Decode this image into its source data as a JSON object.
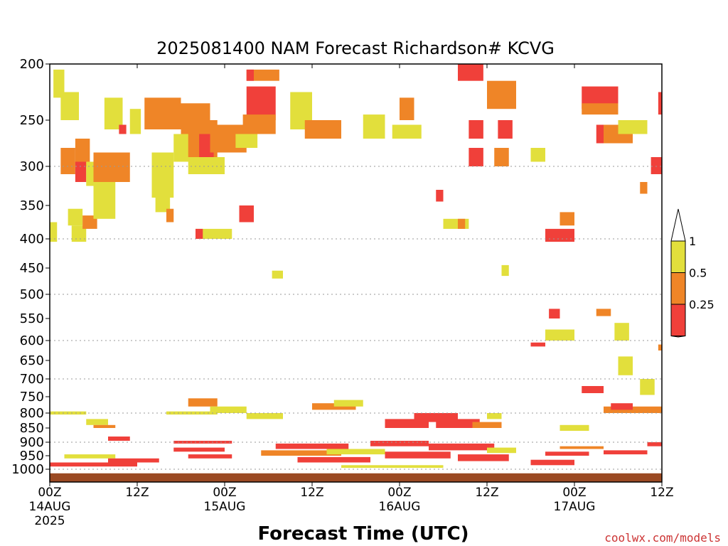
{
  "chart_data": {
    "type": "heatmap",
    "title": "2025081400 NAM Forecast Richardson# KCVG",
    "xlabel": "Forecast Time (UTC)",
    "ylabel": "",
    "x_unit": "forecast hour",
    "x_range": [
      0,
      84
    ],
    "x_ticks": [
      {
        "hour": 0,
        "label": "00Z",
        "sub": "14AUG",
        "sub2": "2025"
      },
      {
        "hour": 12,
        "label": "12Z",
        "sub": "",
        "sub2": ""
      },
      {
        "hour": 24,
        "label": "00Z",
        "sub": "15AUG",
        "sub2": ""
      },
      {
        "hour": 36,
        "label": "12Z",
        "sub": "",
        "sub2": ""
      },
      {
        "hour": 48,
        "label": "00Z",
        "sub": "16AUG",
        "sub2": ""
      },
      {
        "hour": 60,
        "label": "12Z",
        "sub": "",
        "sub2": ""
      },
      {
        "hour": 72,
        "label": "00Z",
        "sub": "17AUG",
        "sub2": ""
      },
      {
        "hour": 84,
        "label": "12Z",
        "sub": "",
        "sub2": ""
      }
    ],
    "y_unit": "hPa",
    "y_range": [
      1025,
      200
    ],
    "y_ticks": [
      200,
      250,
      300,
      350,
      400,
      450,
      500,
      550,
      600,
      650,
      700,
      750,
      800,
      850,
      900,
      950,
      1000
    ],
    "y_gridlines": [
      300,
      400,
      500,
      600,
      700,
      800,
      900,
      1000
    ],
    "grid": "dotted horizontal",
    "surface_band": {
      "top_hpa": 1008,
      "color": "#9b4a23"
    },
    "colorbar": {
      "placement": "right",
      "levels": [
        {
          "label": "1",
          "range": [
            0.5,
            1
          ],
          "color": "#e2df3c"
        },
        {
          "label": "0.5",
          "range": [
            0.25,
            0.5
          ],
          "color": "#ef8527"
        },
        {
          "label": "0.25",
          "range": [
            0,
            0.25
          ],
          "color": "#f0403a"
        }
      ],
      "over_color": "#ffffff",
      "under_color": "#f0403a"
    },
    "cells": [
      {
        "x": [
          0.5,
          2
        ],
        "p": [
          205,
          230
        ],
        "c": "y"
      },
      {
        "x": [
          0,
          1
        ],
        "p": [
          375,
          405
        ],
        "c": "y"
      },
      {
        "x": [
          1.5,
          4
        ],
        "p": [
          225,
          250
        ],
        "c": "y"
      },
      {
        "x": [
          1.5,
          3.5
        ],
        "p": [
          280,
          310
        ],
        "c": "o"
      },
      {
        "x": [
          3.5,
          5.5
        ],
        "p": [
          270,
          300
        ],
        "c": "o"
      },
      {
        "x": [
          3.5,
          5
        ],
        "p": [
          295,
          320
        ],
        "c": "r"
      },
      {
        "x": [
          2.5,
          4.5
        ],
        "p": [
          355,
          380
        ],
        "c": "y"
      },
      {
        "x": [
          3,
          5
        ],
        "p": [
          380,
          405
        ],
        "c": "y"
      },
      {
        "x": [
          4.5,
          6.5
        ],
        "p": [
          365,
          385
        ],
        "c": "o"
      },
      {
        "x": [
          5,
          9
        ],
        "p": [
          295,
          325
        ],
        "c": "y"
      },
      {
        "x": [
          6,
          11
        ],
        "p": [
          285,
          320
        ],
        "c": "o"
      },
      {
        "x": [
          6,
          9
        ],
        "p": [
          325,
          370
        ],
        "c": "y"
      },
      {
        "x": [
          7.5,
          10
        ],
        "p": [
          230,
          260
        ],
        "c": "y"
      },
      {
        "x": [
          9.5,
          10.5
        ],
        "p": [
          255,
          265
        ],
        "c": "r"
      },
      {
        "x": [
          11,
          12.5
        ],
        "p": [
          240,
          265
        ],
        "c": "y"
      },
      {
        "x": [
          13,
          18
        ],
        "p": [
          230,
          260
        ],
        "c": "o"
      },
      {
        "x": [
          14,
          17
        ],
        "p": [
          285,
          340
        ],
        "c": "y"
      },
      {
        "x": [
          14.5,
          16.5
        ],
        "p": [
          320,
          360
        ],
        "c": "y"
      },
      {
        "x": [
          16,
          17
        ],
        "p": [
          355,
          375
        ],
        "c": "o"
      },
      {
        "x": [
          18,
          22
        ],
        "p": [
          235,
          270
        ],
        "c": "o"
      },
      {
        "x": [
          17,
          21
        ],
        "p": [
          265,
          295
        ],
        "c": "y"
      },
      {
        "x": [
          19,
          23
        ],
        "p": [
          250,
          290
        ],
        "c": "o"
      },
      {
        "x": [
          20.5,
          22.5
        ],
        "p": [
          265,
          290
        ],
        "c": "r"
      },
      {
        "x": [
          19,
          24
        ],
        "p": [
          290,
          310
        ],
        "c": "y"
      },
      {
        "x": [
          22,
          27
        ],
        "p": [
          255,
          285
        ],
        "c": "o"
      },
      {
        "x": [
          20,
          25
        ],
        "p": [
          385,
          400
        ],
        "c": "y"
      },
      {
        "x": [
          20,
          21
        ],
        "p": [
          385,
          400
        ],
        "c": "r"
      },
      {
        "x": [
          27,
          31
        ],
        "p": [
          220,
          250
        ],
        "c": "r"
      },
      {
        "x": [
          26.5,
          31
        ],
        "p": [
          245,
          265
        ],
        "c": "o"
      },
      {
        "x": [
          25.5,
          28.5
        ],
        "p": [
          265,
          280
        ],
        "c": "y"
      },
      {
        "x": [
          27,
          31.5
        ],
        "p": [
          205,
          215
        ],
        "c": "o"
      },
      {
        "x": [
          27,
          28
        ],
        "p": [
          205,
          215
        ],
        "c": "r"
      },
      {
        "x": [
          26,
          28
        ],
        "p": [
          350,
          375
        ],
        "c": "r"
      },
      {
        "x": [
          30.5,
          32
        ],
        "p": [
          455,
          470
        ],
        "c": "y"
      },
      {
        "x": [
          33,
          36
        ],
        "p": [
          225,
          260
        ],
        "c": "y"
      },
      {
        "x": [
          35,
          40
        ],
        "p": [
          250,
          270
        ],
        "c": "o"
      },
      {
        "x": [
          43,
          46
        ],
        "p": [
          245,
          270
        ],
        "c": "y"
      },
      {
        "x": [
          48,
          50
        ],
        "p": [
          230,
          250
        ],
        "c": "o"
      },
      {
        "x": [
          47,
          51
        ],
        "p": [
          255,
          270
        ],
        "c": "y"
      },
      {
        "x": [
          53,
          54
        ],
        "p": [
          330,
          345
        ],
        "c": "r"
      },
      {
        "x": [
          54,
          57.5
        ],
        "p": [
          370,
          385
        ],
        "c": "y"
      },
      {
        "x": [
          56,
          57
        ],
        "p": [
          370,
          385
        ],
        "c": "o"
      },
      {
        "x": [
          56,
          59.5
        ],
        "p": [
          200,
          215
        ],
        "c": "r"
      },
      {
        "x": [
          60,
          64
        ],
        "p": [
          215,
          240
        ],
        "c": "o"
      },
      {
        "x": [
          57.5,
          59.5
        ],
        "p": [
          250,
          270
        ],
        "c": "r"
      },
      {
        "x": [
          57.5,
          59.5
        ],
        "p": [
          280,
          300
        ],
        "c": "r"
      },
      {
        "x": [
          61.5,
          63.5
        ],
        "p": [
          250,
          270
        ],
        "c": "r"
      },
      {
        "x": [
          61,
          63
        ],
        "p": [
          280,
          300
        ],
        "c": "o"
      },
      {
        "x": [
          62,
          63
        ],
        "p": [
          445,
          465
        ],
        "c": "y"
      },
      {
        "x": [
          66,
          68
        ],
        "p": [
          280,
          295
        ],
        "c": "y"
      },
      {
        "x": [
          68,
          72
        ],
        "p": [
          385,
          405
        ],
        "c": "r"
      },
      {
        "x": [
          70,
          72
        ],
        "p": [
          360,
          380
        ],
        "c": "o"
      },
      {
        "x": [
          68.5,
          70
        ],
        "p": [
          530,
          550
        ],
        "c": "r"
      },
      {
        "x": [
          68,
          72
        ],
        "p": [
          575,
          600
        ],
        "c": "y"
      },
      {
        "x": [
          66,
          68
        ],
        "p": [
          605,
          615
        ],
        "c": "r"
      },
      {
        "x": [
          73,
          78
        ],
        "p": [
          220,
          240
        ],
        "c": "r"
      },
      {
        "x": [
          73,
          78
        ],
        "p": [
          235,
          245
        ],
        "c": "o"
      },
      {
        "x": [
          75,
          78
        ],
        "p": [
          255,
          275
        ],
        "c": "r"
      },
      {
        "x": [
          76,
          80
        ],
        "p": [
          255,
          275
        ],
        "c": "o"
      },
      {
        "x": [
          78,
          82
        ],
        "p": [
          250,
          265
        ],
        "c": "y"
      },
      {
        "x": [
          82.5,
          84
        ],
        "p": [
          290,
          310
        ],
        "c": "r"
      },
      {
        "x": [
          83.5,
          84
        ],
        "p": [
          225,
          245
        ],
        "c": "r"
      },
      {
        "x": [
          81,
          82
        ],
        "p": [
          320,
          335
        ],
        "c": "o"
      },
      {
        "x": [
          75,
          77
        ],
        "p": [
          530,
          545
        ],
        "c": "o"
      },
      {
        "x": [
          77.5,
          79.5
        ],
        "p": [
          560,
          600
        ],
        "c": "y"
      },
      {
        "x": [
          78,
          80
        ],
        "p": [
          640,
          690
        ],
        "c": "y"
      },
      {
        "x": [
          81,
          83
        ],
        "p": [
          700,
          745
        ],
        "c": "y"
      },
      {
        "x": [
          83.5,
          84
        ],
        "p": [
          610,
          625
        ],
        "c": "o"
      },
      {
        "x": [
          0,
          5
        ],
        "p": [
          795,
          805
        ],
        "c": "y"
      },
      {
        "x": [
          5,
          8
        ],
        "p": [
          820,
          840
        ],
        "c": "y"
      },
      {
        "x": [
          6,
          9
        ],
        "p": [
          840,
          850
        ],
        "c": "o"
      },
      {
        "x": [
          8,
          11
        ],
        "p": [
          880,
          895
        ],
        "c": "r"
      },
      {
        "x": [
          16,
          23
        ],
        "p": [
          795,
          805
        ],
        "c": "y"
      },
      {
        "x": [
          19,
          23
        ],
        "p": [
          755,
          780
        ],
        "c": "o"
      },
      {
        "x": [
          22,
          27
        ],
        "p": [
          780,
          800
        ],
        "c": "y"
      },
      {
        "x": [
          27,
          32
        ],
        "p": [
          800,
          820
        ],
        "c": "y"
      },
      {
        "x": [
          36,
          42
        ],
        "p": [
          770,
          790
        ],
        "c": "o"
      },
      {
        "x": [
          39,
          43
        ],
        "p": [
          760,
          780
        ],
        "c": "y"
      },
      {
        "x": [
          46,
          52
        ],
        "p": [
          820,
          850
        ],
        "c": "r"
      },
      {
        "x": [
          50,
          56
        ],
        "p": [
          800,
          830
        ],
        "c": "r"
      },
      {
        "x": [
          53,
          59
        ],
        "p": [
          820,
          850
        ],
        "c": "r"
      },
      {
        "x": [
          58,
          62
        ],
        "p": [
          830,
          850
        ],
        "c": "o"
      },
      {
        "x": [
          60,
          62
        ],
        "p": [
          800,
          820
        ],
        "c": "y"
      },
      {
        "x": [
          70,
          74
        ],
        "p": [
          840,
          860
        ],
        "c": "y"
      },
      {
        "x": [
          73,
          76
        ],
        "p": [
          720,
          740
        ],
        "c": "r"
      },
      {
        "x": [
          76,
          84
        ],
        "p": [
          780,
          800
        ],
        "c": "o"
      },
      {
        "x": [
          77,
          80
        ],
        "p": [
          770,
          790
        ],
        "c": "r"
      },
      {
        "x": [
          17,
          25
        ],
        "p": [
          895,
          905
        ],
        "c": "r"
      },
      {
        "x": [
          17,
          24
        ],
        "p": [
          920,
          935
        ],
        "c": "r"
      },
      {
        "x": [
          19,
          25
        ],
        "p": [
          945,
          960
        ],
        "c": "r"
      },
      {
        "x": [
          29,
          40
        ],
        "p": [
          930,
          950
        ],
        "c": "o"
      },
      {
        "x": [
          31,
          41
        ],
        "p": [
          905,
          925
        ],
        "c": "r"
      },
      {
        "x": [
          34,
          44
        ],
        "p": [
          955,
          975
        ],
        "c": "r"
      },
      {
        "x": [
          38,
          46
        ],
        "p": [
          925,
          945
        ],
        "c": "y"
      },
      {
        "x": [
          44,
          52
        ],
        "p": [
          895,
          915
        ],
        "c": "r"
      },
      {
        "x": [
          46,
          55
        ],
        "p": [
          935,
          960
        ],
        "c": "r"
      },
      {
        "x": [
          52,
          61
        ],
        "p": [
          905,
          930
        ],
        "c": "r"
      },
      {
        "x": [
          56,
          63
        ],
        "p": [
          945,
          970
        ],
        "c": "r"
      },
      {
        "x": [
          60,
          64
        ],
        "p": [
          920,
          940
        ],
        "c": "y"
      },
      {
        "x": [
          68,
          74
        ],
        "p": [
          935,
          950
        ],
        "c": "r"
      },
      {
        "x": [
          70,
          76
        ],
        "p": [
          915,
          925
        ],
        "c": "o"
      },
      {
        "x": [
          66,
          72
        ],
        "p": [
          965,
          985
        ],
        "c": "r"
      },
      {
        "x": [
          76,
          82
        ],
        "p": [
          930,
          945
        ],
        "c": "r"
      },
      {
        "x": [
          82,
          84
        ],
        "p": [
          900,
          915
        ],
        "c": "r"
      },
      {
        "x": [
          0,
          12
        ],
        "p": [
          975,
          990
        ],
        "c": "r"
      },
      {
        "x": [
          2,
          9
        ],
        "p": [
          945,
          960
        ],
        "c": "y"
      },
      {
        "x": [
          8,
          15
        ],
        "p": [
          960,
          975
        ],
        "c": "r"
      },
      {
        "x": [
          40,
          54
        ],
        "p": [
          985,
          995
        ],
        "c": "y"
      }
    ]
  },
  "credit": "coolwx.com/models"
}
